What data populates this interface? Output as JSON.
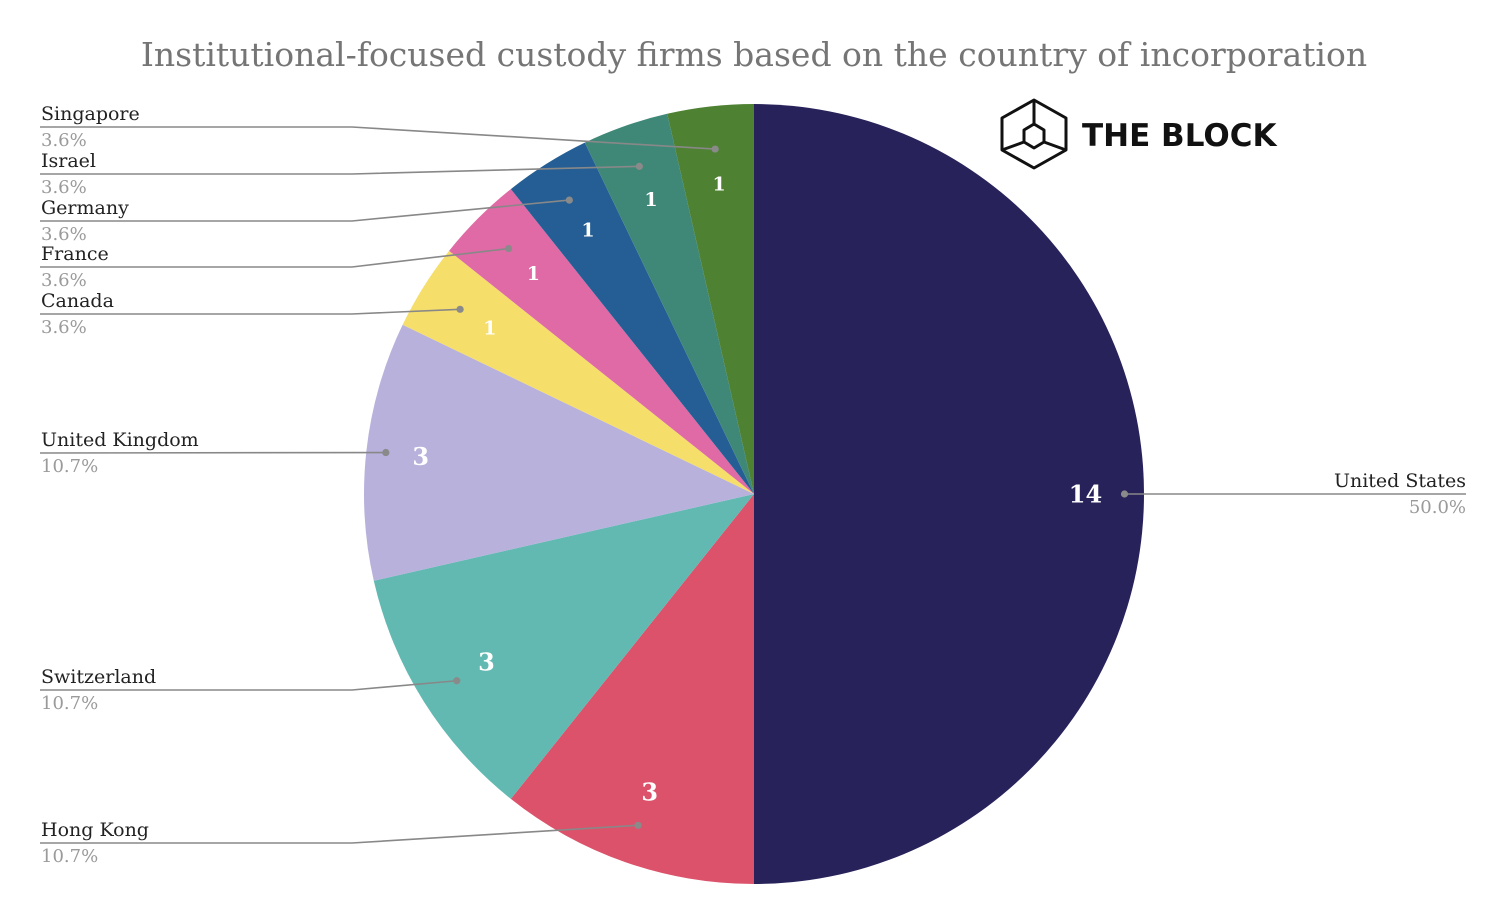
{
  "chart_data": {
    "type": "pie",
    "title": "Institutional-focused custody firms based on the country of incorporation",
    "start": "12 o'clock, clockwise",
    "slices": [
      {
        "label": "United States",
        "value": 14,
        "percent": "50.0%",
        "color": "#272259"
      },
      {
        "label": "Hong Kong",
        "value": 3,
        "percent": "10.7%",
        "color": "#dc526b"
      },
      {
        "label": "Switzerland",
        "value": 3,
        "percent": "10.7%",
        "color": "#62b9b1"
      },
      {
        "label": "United Kingdom",
        "value": 3,
        "percent": "10.7%",
        "color": "#b7b1dc"
      },
      {
        "label": "Canada",
        "value": 1,
        "percent": "3.6%",
        "color": "#f6de6a"
      },
      {
        "label": "France",
        "value": 1,
        "percent": "3.6%",
        "color": "#df6aa6"
      },
      {
        "label": "Germany",
        "value": 1,
        "percent": "3.6%",
        "color": "#245e94"
      },
      {
        "label": "Israel",
        "value": 1,
        "percent": "3.6%",
        "color": "#3f8878"
      },
      {
        "label": "Singapore",
        "value": 1,
        "percent": "3.6%",
        "color": "#4e8132"
      }
    ]
  },
  "brand": {
    "name": "THE BLOCK",
    "logo_icon": "cube-logo-icon"
  }
}
